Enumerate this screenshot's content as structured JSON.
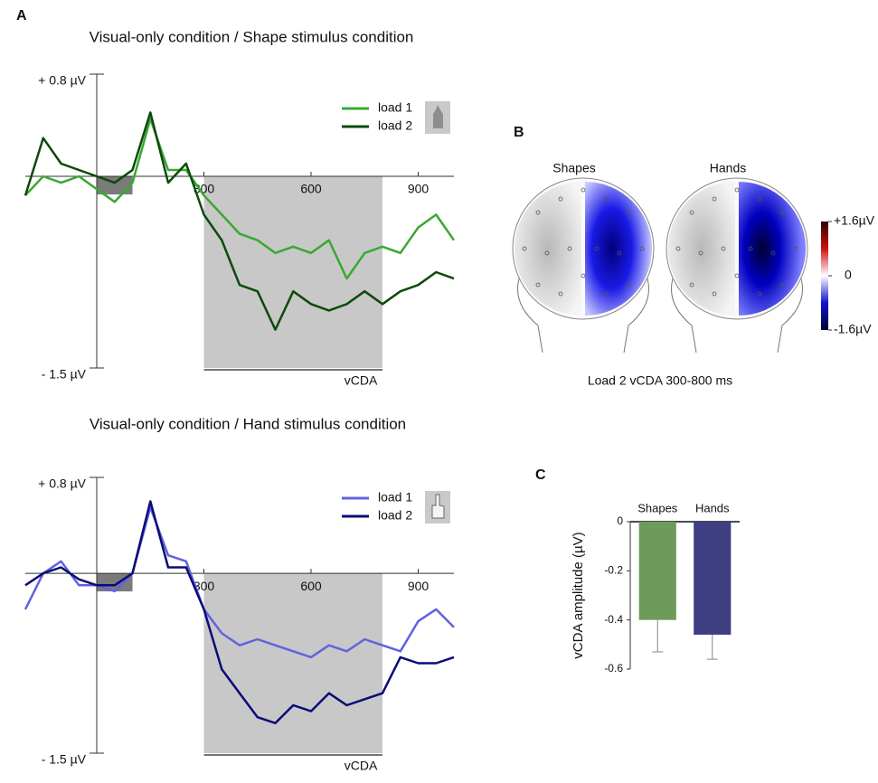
{
  "chart_data": [
    {
      "type": "line",
      "panel": "A",
      "title": "Visual-only condition / Shape stimulus condition",
      "x": [
        -200,
        -150,
        -100,
        -50,
        0,
        50,
        100,
        150,
        200,
        250,
        300,
        350,
        400,
        450,
        500,
        550,
        600,
        650,
        700,
        750,
        800,
        850,
        900,
        950,
        1000
      ],
      "series": [
        {
          "name": "load 1",
          "color": "#3aa832",
          "values": [
            -0.15,
            0.0,
            -0.05,
            0.0,
            -0.1,
            -0.2,
            -0.05,
            0.45,
            0.05,
            0.05,
            -0.15,
            -0.3,
            -0.45,
            -0.5,
            -0.6,
            -0.55,
            -0.6,
            -0.5,
            -0.8,
            -0.6,
            -0.55,
            -0.6,
            -0.4,
            -0.3,
            -0.5
          ]
        },
        {
          "name": "load 2",
          "color": "#0c4a0c",
          "values": [
            -0.15,
            0.3,
            0.1,
            0.05,
            0.0,
            -0.05,
            0.05,
            0.5,
            -0.05,
            0.1,
            -0.3,
            -0.5,
            -0.85,
            -0.9,
            -1.2,
            -0.9,
            -1.0,
            -1.05,
            -1.0,
            -0.9,
            -1.0,
            -0.9,
            -0.85,
            -0.75,
            -0.8
          ]
        }
      ],
      "xlim": [
        -200,
        1000
      ],
      "xticks": [
        300,
        600,
        900
      ],
      "ylim": [
        -1.5,
        0.8
      ],
      "yticks": [
        {
          "value": 0.8,
          "label": "+ 0.8 µV"
        },
        {
          "value": -1.5,
          "label": "- 1.5 µV"
        }
      ],
      "baseline": [
        0,
        100
      ],
      "window": {
        "label": "vCDA",
        "xlim": [
          300,
          800
        ]
      }
    },
    {
      "type": "line",
      "title": "Visual-only condition / Hand stimulus condition",
      "x": [
        -200,
        -150,
        -100,
        -50,
        0,
        50,
        100,
        150,
        200,
        250,
        300,
        350,
        400,
        450,
        500,
        550,
        600,
        650,
        700,
        750,
        800,
        850,
        900,
        950,
        1000
      ],
      "series": [
        {
          "name": "load 1",
          "color": "#6262e0",
          "values": [
            -0.3,
            0.0,
            0.1,
            -0.1,
            -0.1,
            -0.15,
            0.0,
            0.55,
            0.15,
            0.1,
            -0.3,
            -0.5,
            -0.6,
            -0.55,
            -0.6,
            -0.65,
            -0.7,
            -0.6,
            -0.65,
            -0.55,
            -0.6,
            -0.65,
            -0.4,
            -0.3,
            -0.45
          ]
        },
        {
          "name": "load 2",
          "color": "#0b0b78",
          "values": [
            -0.1,
            0.0,
            0.05,
            -0.05,
            -0.1,
            -0.1,
            0.0,
            0.6,
            0.05,
            0.05,
            -0.3,
            -0.8,
            -1.0,
            -1.2,
            -1.25,
            -1.1,
            -1.15,
            -1.0,
            -1.1,
            -1.05,
            -1.0,
            -0.7,
            -0.75,
            -0.75,
            -0.7
          ]
        }
      ],
      "xlim": [
        -200,
        1000
      ],
      "xticks": [
        300,
        600,
        900
      ],
      "ylim": [
        -1.5,
        0.8
      ],
      "yticks": [
        {
          "value": 0.8,
          "label": "+ 0.8 µV"
        },
        {
          "value": -1.5,
          "label": "- 1.5 µV"
        }
      ],
      "baseline": [
        0,
        100
      ],
      "window": {
        "label": "vCDA",
        "xlim": [
          300,
          800
        ]
      }
    },
    {
      "type": "topomap",
      "panel": "B",
      "title": "Load 2 vCDA 300-800 ms",
      "panels": [
        "Shapes",
        "Hands"
      ],
      "clim": [
        -1.6,
        1.6
      ],
      "cticks": [
        {
          "value": 1.6,
          "label": "+1.6µV"
        },
        0,
        {
          "value": -1.6,
          "label": "-1.6µV"
        }
      ]
    },
    {
      "type": "bar",
      "panel": "C",
      "ylabel": "vCDA amplitude (µV)",
      "categories": [
        "Shapes",
        "Hands"
      ],
      "values": [
        -0.4,
        -0.46
      ],
      "errors": [
        0.13,
        0.1
      ],
      "colors": [
        "#6e9a5a",
        "#3e3e82"
      ],
      "ylim": [
        -0.6,
        0
      ],
      "yticks": [
        0,
        -0.2,
        -0.4,
        -0.6
      ]
    }
  ]
}
